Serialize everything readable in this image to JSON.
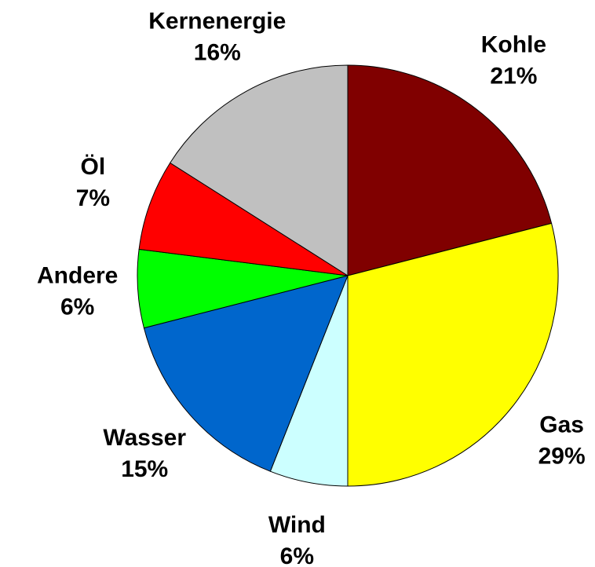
{
  "chart_data": {
    "type": "pie",
    "categories": [
      "Kohle",
      "Gas",
      "Wind",
      "Wasser",
      "Andere",
      "Öl",
      "Kernenergie"
    ],
    "values": [
      21,
      29,
      6,
      15,
      6,
      7,
      16
    ],
    "value_labels": [
      "21%",
      "29%",
      "6%",
      "15%",
      "6%",
      "7%",
      "16%"
    ],
    "colors": [
      "#800000",
      "#ffff00",
      "#ccffff",
      "#0066cc",
      "#00ff00",
      "#ff0000",
      "#c0c0c0"
    ]
  }
}
